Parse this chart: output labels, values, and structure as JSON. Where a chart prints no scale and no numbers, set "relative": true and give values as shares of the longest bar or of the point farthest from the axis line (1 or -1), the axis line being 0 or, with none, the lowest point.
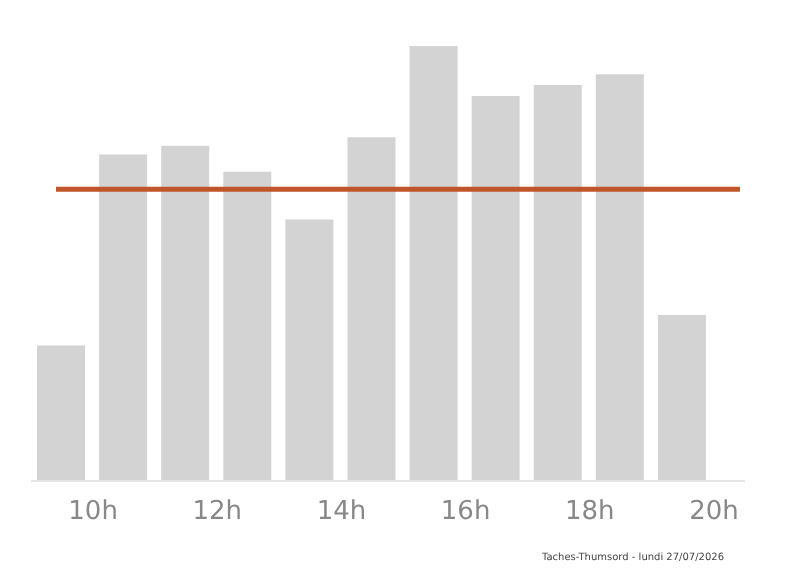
{
  "chart_data": {
    "type": "bar",
    "relative": true,
    "x": [
      9.5,
      10.5,
      11.5,
      12.5,
      13.5,
      14.5,
      15.5,
      16.5,
      17.5,
      18.5,
      19.5
    ],
    "values": [
      0.31,
      0.75,
      0.77,
      0.71,
      0.6,
      0.79,
      1,
      0.885,
      0.91,
      0.935,
      0.38
    ],
    "color": "#d3d3d3",
    "xlim": [
      9,
      20.5
    ],
    "xticks": [
      {
        "value": 10,
        "label": "10h"
      },
      {
        "value": 12,
        "label": "12h"
      },
      {
        "value": 14,
        "label": "14h"
      },
      {
        "value": 16,
        "label": "16h"
      },
      {
        "value": 18,
        "label": "18h"
      },
      {
        "value": 20,
        "label": "20h"
      }
    ],
    "ref_lines": [
      {
        "axis": "y",
        "value": 0.67,
        "color": "#c0552a"
      }
    ],
    "grid": false,
    "annotations": [
      "Taches-Thumsord - lundi 27/07/2026"
    ]
  }
}
